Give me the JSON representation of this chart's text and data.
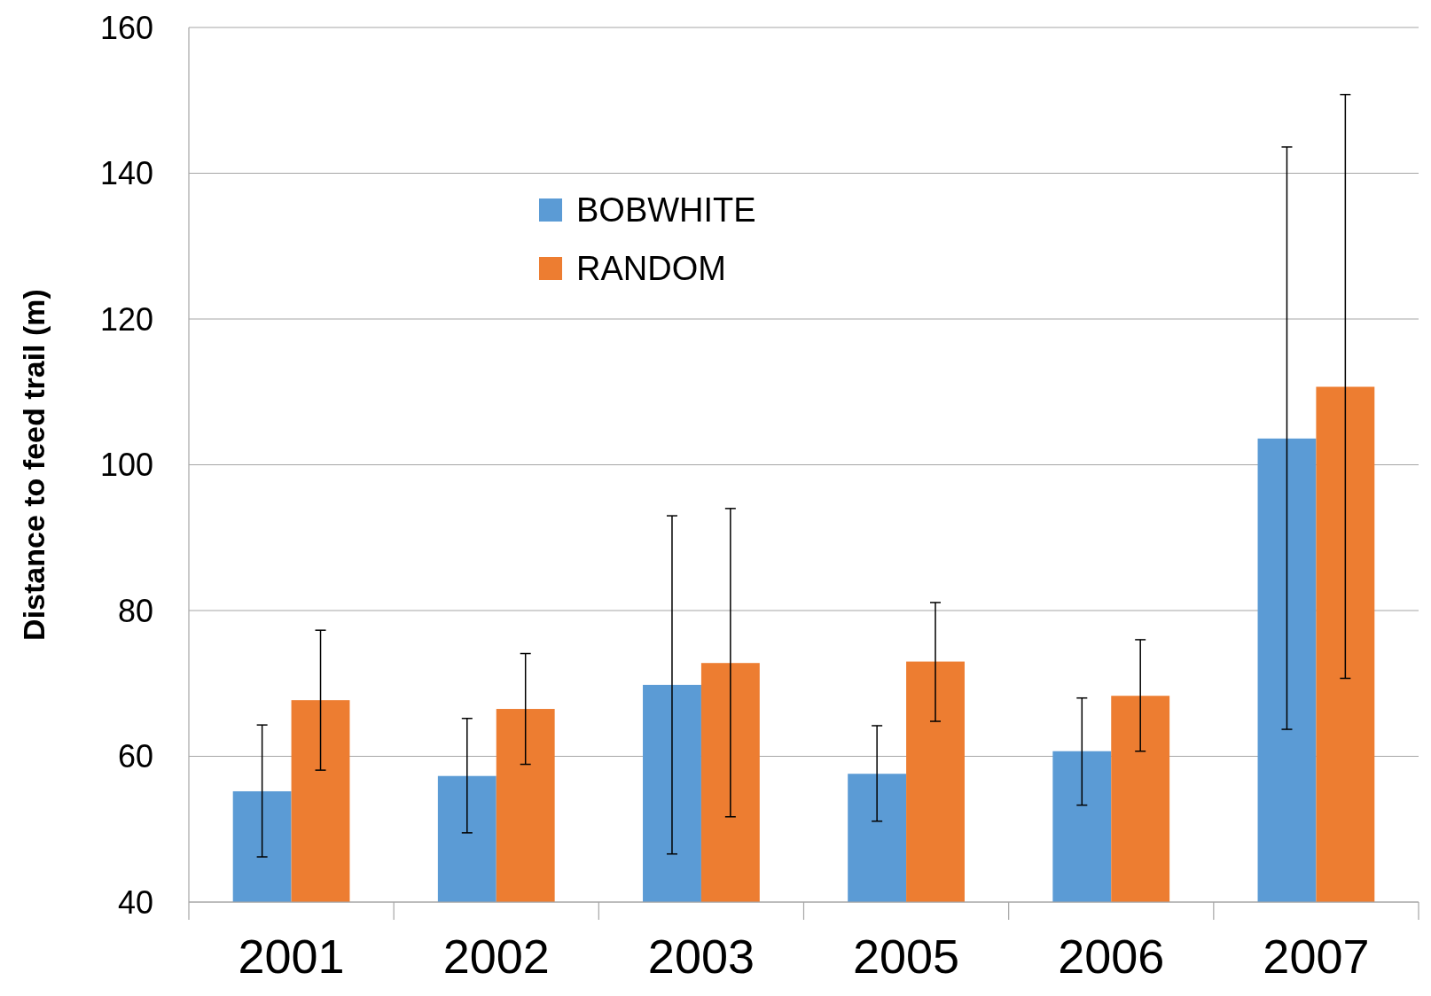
{
  "chart_data": {
    "type": "bar",
    "ylabel": "Distance to feed trail (m)",
    "categories": [
      "2001",
      "2002",
      "2003",
      "2005",
      "2006",
      "2007"
    ],
    "series": [
      {
        "name": "BOBWHITE",
        "color": "#5b9bd5",
        "values": [
          55.2,
          57.3,
          69.8,
          57.6,
          60.7,
          103.6
        ],
        "errors": [
          [
            46.2,
            64.3
          ],
          [
            49.5,
            65.2
          ],
          [
            46.6,
            93.0
          ],
          [
            51.1,
            64.2
          ],
          [
            53.3,
            68.0
          ],
          [
            63.7,
            143.6
          ]
        ]
      },
      {
        "name": "RANDOM",
        "color": "#ed7d31",
        "values": [
          67.7,
          66.5,
          72.8,
          73.0,
          68.3,
          110.7
        ],
        "errors": [
          [
            58.1,
            77.3
          ],
          [
            58.9,
            74.1
          ],
          [
            51.7,
            94.0
          ],
          [
            64.8,
            81.1
          ],
          [
            60.7,
            76.0
          ],
          [
            70.7,
            150.8
          ]
        ]
      }
    ],
    "ylim": [
      40,
      160
    ],
    "yticks": [
      40,
      60,
      80,
      100,
      120,
      140,
      160
    ],
    "grid": "y",
    "legend": "top left"
  }
}
